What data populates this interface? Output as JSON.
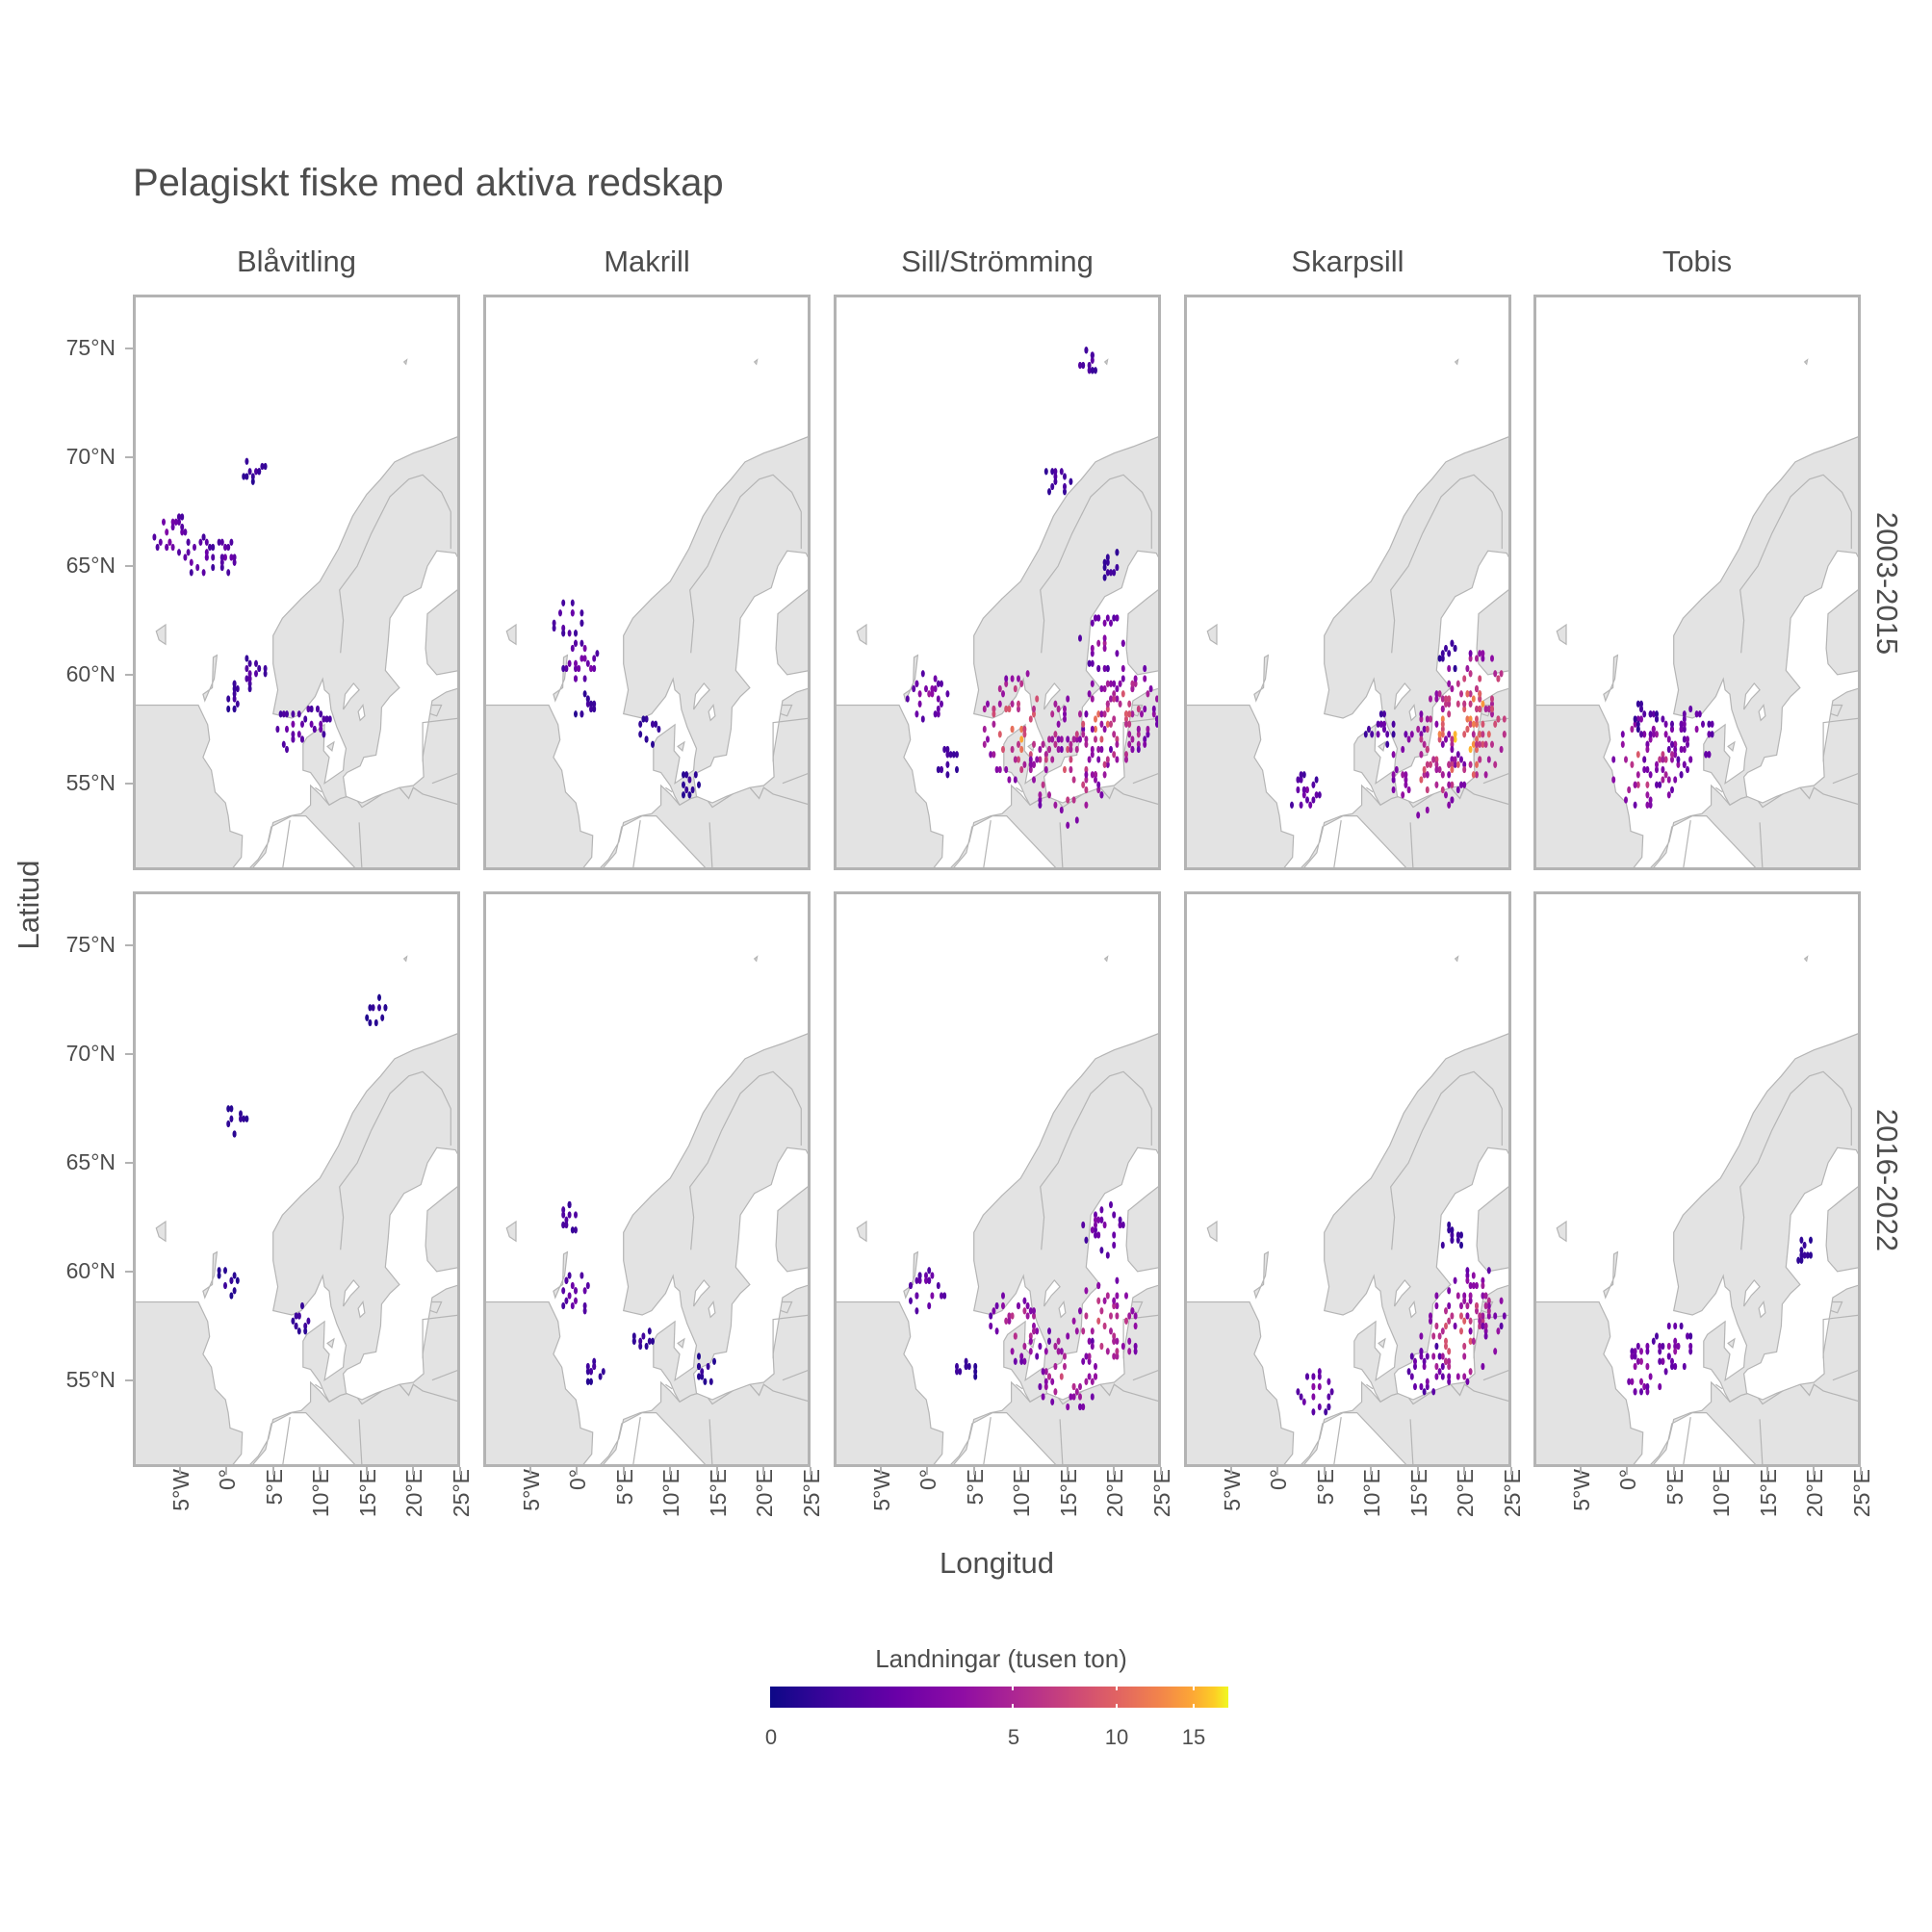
{
  "title": "Pelagiskt fiske med aktiva redskap",
  "x_axis_label": "Longitud",
  "y_axis_label": "Latitud",
  "columns": [
    "Blåvitling",
    "Makrill",
    "Sill/Strömming",
    "Skarpsill",
    "Tobis"
  ],
  "rows": [
    "2003-2015",
    "2016-2022"
  ],
  "y_ticks": [
    "75°N",
    "70°N",
    "65°N",
    "60°N",
    "55°N"
  ],
  "x_ticks": [
    "5°W",
    "0°",
    "5°E",
    "10°E",
    "15°E",
    "20°E",
    "25°E"
  ],
  "legend": {
    "title": "Landningar (tusen ton)",
    "ticks": [
      "0",
      "5",
      "10",
      "15"
    ],
    "colormap": "plasma",
    "range": [
      0,
      17
    ]
  },
  "colors": {
    "land": "#e3e3e3",
    "coast": "#b5b5b5",
    "panel_border": "#b3b3b3",
    "low": "#0d0887",
    "mid": "#cc4778",
    "high": "#f0f921"
  },
  "chart_data": {
    "type": "heatmap",
    "xlabel": "Longitud",
    "ylabel": "Latitud",
    "xlim": [
      -10,
      25
    ],
    "ylim": [
      51,
      77.5
    ],
    "value_unit": "tusen ton",
    "panels": [
      {
        "species": "Blåvitling",
        "period": "2003-2015",
        "hotspots": [
          {
            "lon": -6,
            "lat": 66.5,
            "value": 2.5
          },
          {
            "lon": -3,
            "lat": 65.5,
            "value": 2.0
          },
          {
            "lon": 0,
            "lat": 65.5,
            "value": 1.5
          },
          {
            "lon": 1,
            "lat": 59,
            "value": 0.5
          },
          {
            "lon": 3,
            "lat": 60,
            "value": 1.0
          },
          {
            "lon": 7,
            "lat": 57.5,
            "value": 2.0
          },
          {
            "lon": 9.5,
            "lat": 57.8,
            "value": 1.5
          },
          {
            "lon": 3,
            "lat": 69.5,
            "value": 0.5
          }
        ]
      },
      {
        "species": "Makrill",
        "period": "2003-2015",
        "hotspots": [
          {
            "lon": 0.5,
            "lat": 60.5,
            "value": 2.5
          },
          {
            "lon": -1,
            "lat": 62.5,
            "value": 1.5
          },
          {
            "lon": 1,
            "lat": 58.5,
            "value": 0.5
          },
          {
            "lon": 8,
            "lat": 57.5,
            "value": 0.5
          },
          {
            "lon": 12,
            "lat": 55,
            "value": 0.3
          }
        ]
      },
      {
        "species": "Sill/Strömming",
        "period": "2003-2015",
        "hotspots": [
          {
            "lon": 0,
            "lat": 59,
            "value": 3.0
          },
          {
            "lon": 2,
            "lat": 56,
            "value": 0.8
          },
          {
            "lon": 10,
            "lat": 57.5,
            "value": 12
          },
          {
            "lon": 15,
            "lat": 55.5,
            "value": 9
          },
          {
            "lon": 19,
            "lat": 57.5,
            "value": 10
          },
          {
            "lon": 21,
            "lat": 58.5,
            "value": 8
          },
          {
            "lon": 19,
            "lat": 61.5,
            "value": 4
          },
          {
            "lon": 20,
            "lat": 65,
            "value": 0.5
          },
          {
            "lon": 14,
            "lat": 69,
            "value": 0.8
          },
          {
            "lon": 17,
            "lat": 74.5,
            "value": 1.0
          }
        ]
      },
      {
        "species": "Skarpsill",
        "period": "2003-2015",
        "hotspots": [
          {
            "lon": 3,
            "lat": 54.5,
            "value": 2.0
          },
          {
            "lon": 16,
            "lat": 55.5,
            "value": 8
          },
          {
            "lon": 19.5,
            "lat": 57,
            "value": 15
          },
          {
            "lon": 21.5,
            "lat": 58.5,
            "value": 12
          },
          {
            "lon": 18.5,
            "lat": 61,
            "value": 0.5
          },
          {
            "lon": 11,
            "lat": 57.5,
            "value": 1.5
          }
        ]
      },
      {
        "species": "Tobis",
        "period": "2003-2015",
        "hotspots": [
          {
            "lon": 2,
            "lat": 56,
            "value": 8
          },
          {
            "lon": 4,
            "lat": 56.5,
            "value": 5
          },
          {
            "lon": 7,
            "lat": 57,
            "value": 4
          },
          {
            "lon": 2,
            "lat": 58,
            "value": 0.8
          }
        ]
      },
      {
        "species": "Blåvitling",
        "period": "2016-2022",
        "hotspots": [
          {
            "lon": 8,
            "lat": 57.8,
            "value": 0.5
          },
          {
            "lon": 0,
            "lat": 59.5,
            "value": 0.3
          },
          {
            "lon": 16,
            "lat": 72,
            "value": 0.3
          },
          {
            "lon": 1,
            "lat": 67,
            "value": 0.3
          }
        ]
      },
      {
        "species": "Makrill",
        "period": "2016-2022",
        "hotspots": [
          {
            "lon": 0,
            "lat": 59,
            "value": 2.0
          },
          {
            "lon": 2,
            "lat": 55.5,
            "value": 0.5
          },
          {
            "lon": 7,
            "lat": 57,
            "value": 0.4
          },
          {
            "lon": 14,
            "lat": 55.5,
            "value": 0.3
          },
          {
            "lon": -1,
            "lat": 62.5,
            "value": 1.0
          }
        ]
      },
      {
        "species": "Sill/Strömming",
        "period": "2016-2022",
        "hotspots": [
          {
            "lon": 0,
            "lat": 59,
            "value": 2.5
          },
          {
            "lon": 4,
            "lat": 55.5,
            "value": 0.4
          },
          {
            "lon": 10,
            "lat": 57.5,
            "value": 6
          },
          {
            "lon": 15,
            "lat": 55.5,
            "value": 7
          },
          {
            "lon": 19,
            "lat": 57.5,
            "value": 8
          },
          {
            "lon": 19,
            "lat": 62,
            "value": 3
          }
        ]
      },
      {
        "species": "Skarpsill",
        "period": "2016-2022",
        "hotspots": [
          {
            "lon": 4,
            "lat": 54.5,
            "value": 2.5
          },
          {
            "lon": 16,
            "lat": 55.5,
            "value": 3
          },
          {
            "lon": 19.5,
            "lat": 57,
            "value": 9
          },
          {
            "lon": 21.5,
            "lat": 58.5,
            "value": 6
          },
          {
            "lon": 18.5,
            "lat": 61.5,
            "value": 0.5
          }
        ]
      },
      {
        "species": "Tobis",
        "period": "2016-2022",
        "hotspots": [
          {
            "lon": 2,
            "lat": 55.5,
            "value": 4
          },
          {
            "lon": 5,
            "lat": 56.5,
            "value": 3
          },
          {
            "lon": 19,
            "lat": 61,
            "value": 0.3
          }
        ]
      }
    ]
  }
}
